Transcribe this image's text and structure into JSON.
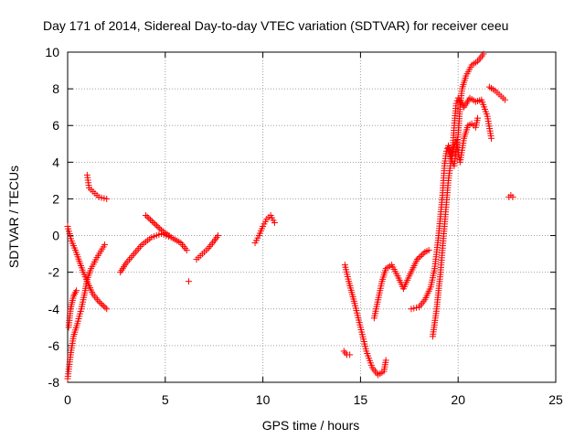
{
  "chart_data": {
    "type": "scatter",
    "title": "Day 171 of 2014, Sidereal Day-to-day VTEC variation (SDTVAR) for receiver ceeu",
    "xlabel": "GPS time / hours",
    "ylabel": "SDTVAR / TECUs",
    "xlim": [
      0,
      25
    ],
    "ylim": [
      -8,
      10
    ],
    "xticks": [
      "0",
      "5",
      "10",
      "15",
      "20",
      "25"
    ],
    "yticks": [
      "-8",
      "-6",
      "-4",
      "-2",
      "0",
      "2",
      "4",
      "6",
      "8",
      "10"
    ],
    "grid": true,
    "marker": "+",
    "color": "#ff0000",
    "segments": [
      [
        [
          0.0,
          -7.8
        ],
        [
          0.15,
          -6.5
        ],
        [
          0.3,
          -5.5
        ],
        [
          0.5,
          -4.8
        ],
        [
          0.7,
          -4.0
        ],
        [
          0.9,
          -3.0
        ],
        [
          1.0,
          -2.4
        ],
        [
          1.2,
          -1.8
        ],
        [
          1.5,
          -1.2
        ],
        [
          1.9,
          -0.5
        ]
      ],
      [
        [
          0.0,
          0.5
        ],
        [
          0.2,
          -0.3
        ],
        [
          0.4,
          -0.8
        ],
        [
          0.6,
          -1.4
        ],
        [
          0.8,
          -2.0
        ],
        [
          1.0,
          -2.5
        ],
        [
          1.3,
          -3.2
        ],
        [
          1.6,
          -3.6
        ],
        [
          2.0,
          -4.0
        ]
      ],
      [
        [
          0.05,
          -5.0
        ],
        [
          0.15,
          -4.0
        ],
        [
          0.3,
          -3.3
        ],
        [
          0.45,
          -3.0
        ]
      ],
      [
        [
          1.0,
          3.3
        ],
        [
          1.1,
          2.6
        ],
        [
          1.3,
          2.4
        ],
        [
          1.6,
          2.1
        ],
        [
          2.0,
          2.0
        ]
      ],
      [
        [
          2.7,
          -2.0
        ],
        [
          3.0,
          -1.5
        ],
        [
          3.4,
          -1.0
        ],
        [
          3.8,
          -0.5
        ],
        [
          4.3,
          -0.1
        ],
        [
          4.8,
          0.1
        ],
        [
          5.3,
          -0.1
        ],
        [
          5.8,
          -0.4
        ],
        [
          6.1,
          -0.8
        ]
      ],
      [
        [
          4.0,
          1.1
        ],
        [
          4.4,
          0.7
        ],
        [
          4.8,
          0.3
        ],
        [
          5.2,
          0.0
        ]
      ],
      [
        [
          6.2,
          -2.5
        ]
      ],
      [
        [
          6.6,
          -1.3
        ],
        [
          6.9,
          -1.0
        ],
        [
          7.2,
          -0.7
        ],
        [
          7.5,
          -0.3
        ],
        [
          7.7,
          0.0
        ]
      ],
      [
        [
          9.6,
          -0.4
        ],
        [
          9.8,
          0.0
        ],
        [
          10.0,
          0.5
        ],
        [
          10.2,
          0.9
        ],
        [
          10.4,
          1.1
        ],
        [
          10.6,
          0.7
        ]
      ],
      [
        [
          14.2,
          -1.6
        ],
        [
          14.4,
          -2.5
        ],
        [
          14.7,
          -3.7
        ],
        [
          15.0,
          -5.0
        ],
        [
          15.3,
          -6.3
        ],
        [
          15.6,
          -7.2
        ],
        [
          15.9,
          -7.6
        ],
        [
          16.2,
          -7.4
        ],
        [
          16.3,
          -6.8
        ]
      ],
      [
        [
          14.15,
          -6.3
        ],
        [
          14.3,
          -6.5
        ],
        [
          14.45,
          -6.5
        ]
      ],
      [
        [
          15.7,
          -4.5
        ],
        [
          15.9,
          -3.5
        ],
        [
          16.1,
          -2.5
        ],
        [
          16.3,
          -1.8
        ],
        [
          16.6,
          -1.6
        ],
        [
          16.9,
          -2.2
        ],
        [
          17.2,
          -2.9
        ],
        [
          17.5,
          -2.2
        ],
        [
          17.9,
          -1.3
        ],
        [
          18.3,
          -0.9
        ],
        [
          18.5,
          -0.8
        ]
      ],
      [
        [
          17.6,
          -4.0
        ],
        [
          18.0,
          -3.9
        ],
        [
          18.3,
          -3.5
        ],
        [
          18.6,
          -2.8
        ],
        [
          18.8,
          -1.8
        ],
        [
          19.0,
          0.0
        ],
        [
          19.2,
          2.2
        ],
        [
          19.3,
          3.8
        ],
        [
          19.4,
          4.6
        ],
        [
          19.5,
          4.9
        ],
        [
          19.7,
          4.4
        ],
        [
          19.8,
          6.0
        ],
        [
          19.9,
          7.2
        ],
        [
          20.0,
          7.5
        ],
        [
          20.3,
          7.0
        ],
        [
          20.6,
          7.5
        ],
        [
          20.9,
          7.3
        ],
        [
          21.2,
          7.4
        ],
        [
          21.5,
          6.5
        ],
        [
          21.7,
          5.3
        ]
      ],
      [
        [
          18.7,
          -5.5
        ],
        [
          18.9,
          -4.0
        ],
        [
          19.1,
          -2.0
        ],
        [
          19.3,
          0.5
        ],
        [
          19.5,
          3.0
        ],
        [
          19.7,
          4.6
        ],
        [
          19.9,
          5.2
        ],
        [
          20.1,
          4.0
        ],
        [
          20.3,
          5.3
        ],
        [
          20.5,
          6.0
        ],
        [
          20.7,
          6.1
        ],
        [
          20.9,
          5.9
        ],
        [
          21.0,
          6.4
        ]
      ],
      [
        [
          19.5,
          4.8
        ],
        [
          19.6,
          4.3
        ],
        [
          19.8,
          3.8
        ],
        [
          20.0,
          5.5
        ],
        [
          20.1,
          7.0
        ],
        [
          20.2,
          8.0
        ],
        [
          20.4,
          8.7
        ],
        [
          20.7,
          9.3
        ],
        [
          21.0,
          9.5
        ],
        [
          21.3,
          9.9
        ]
      ],
      [
        [
          21.6,
          8.1
        ],
        [
          21.9,
          7.9
        ],
        [
          22.2,
          7.6
        ],
        [
          22.4,
          7.4
        ]
      ],
      [
        [
          22.6,
          2.1
        ],
        [
          22.7,
          2.2
        ],
        [
          22.8,
          2.1
        ]
      ]
    ]
  }
}
